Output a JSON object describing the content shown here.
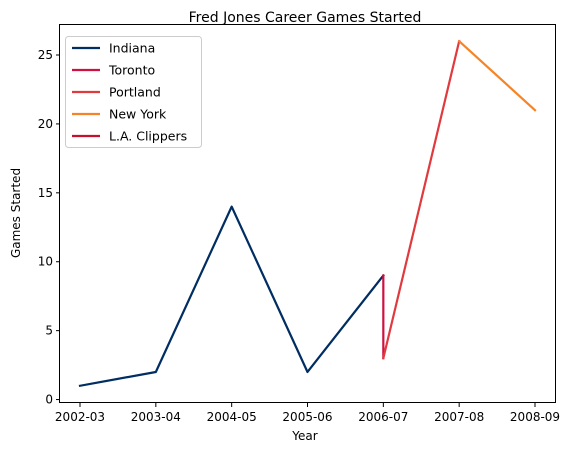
{
  "chart_data": {
    "type": "line",
    "title": "Fred Jones  Career Games Started",
    "xlabel": "Year",
    "ylabel": "Games Started",
    "categories": [
      "2002-03",
      "2003-04",
      "2004-05",
      "2005-06",
      "2006-07",
      "2007-08",
      "2008-09"
    ],
    "ylim": [
      -0.25,
      27.25
    ],
    "yticks": [
      0,
      5,
      10,
      15,
      20,
      25
    ],
    "grid": false,
    "legend_position": "top-left",
    "series": [
      {
        "name": "Indiana",
        "color": "#002D62",
        "points": [
          [
            "2002-03",
            1
          ],
          [
            "2003-04",
            2
          ],
          [
            "2004-05",
            14
          ],
          [
            "2005-06",
            2
          ],
          [
            "2006-07",
            9
          ]
        ]
      },
      {
        "name": "Toronto",
        "color": "#CE1141",
        "points": [
          [
            "2006-07",
            9
          ],
          [
            "2006-07",
            3
          ]
        ]
      },
      {
        "name": "Portland",
        "color": "#E03A3E",
        "points": [
          [
            "2006-07",
            3
          ],
          [
            "2007-08",
            26
          ]
        ]
      },
      {
        "name": "New York",
        "color": "#F58426",
        "points": [
          [
            "2007-08",
            26
          ],
          [
            "2008-09",
            21
          ]
        ]
      },
      {
        "name": "L.A. Clippers",
        "color": "#C8102E",
        "points": []
      }
    ]
  }
}
